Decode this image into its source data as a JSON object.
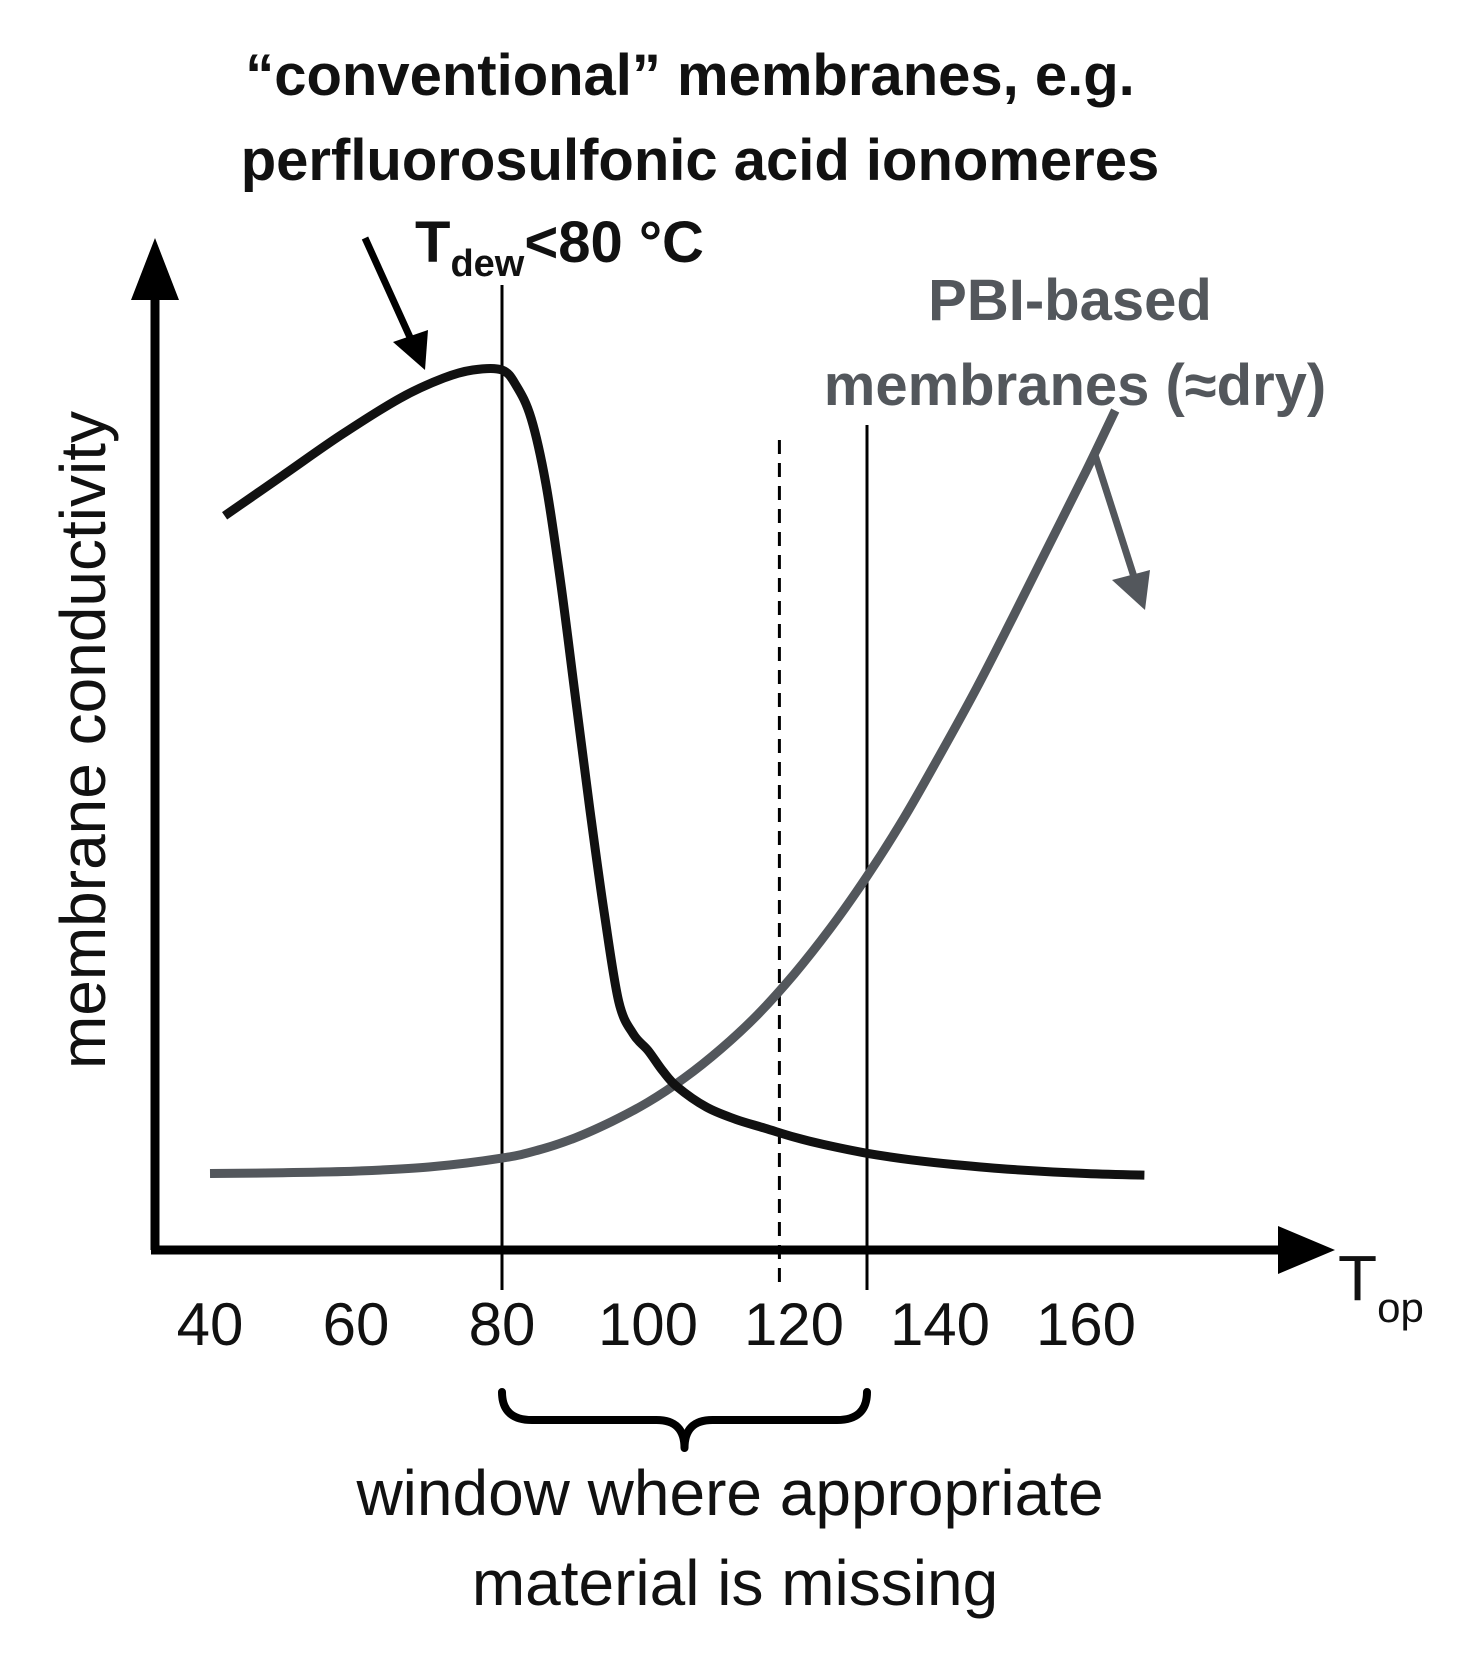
{
  "chart_data": {
    "type": "line",
    "title": "",
    "xlabel": "T",
    "xlabel_sub": "op",
    "ylabel": "membrane conductivity",
    "x_ticks": [
      40,
      60,
      80,
      100,
      120,
      140,
      160
    ],
    "xlim": [
      40,
      168
    ],
    "ylim": [
      0,
      100
    ],
    "y_ticks_shown": false,
    "grid": false,
    "series": [
      {
        "id": "conventional",
        "color": "#111111",
        "x": [
          42,
          50,
          58,
          66,
          72,
          76,
          80,
          82,
          84,
          86,
          88,
          90,
          92,
          94,
          96,
          98,
          100,
          102,
          104,
          108,
          112,
          116,
          120,
          124,
          130,
          136,
          142,
          150,
          160,
          168
        ],
        "y": [
          82,
          87,
          92,
          96.5,
          99,
          100,
          100,
          98,
          94,
          86,
          74,
          60,
          46,
          33,
          22,
          18,
          16,
          13.5,
          11.5,
          9,
          7.5,
          6.4,
          5.3,
          4.4,
          3.3,
          2.5,
          1.9,
          1.3,
          0.8,
          0.6
        ]
      },
      {
        "id": "pbi",
        "color": "#53575c",
        "x": [
          40,
          50,
          60,
          70,
          80,
          85,
          90,
          95,
          100,
          105,
          110,
          115,
          120,
          125,
          130,
          135,
          140,
          145,
          150,
          155,
          160,
          164
        ],
        "y": [
          0.8,
          0.9,
          1.1,
          1.6,
          2.7,
          3.7,
          5.2,
          7.2,
          9.6,
          12.6,
          16.2,
          20.4,
          25.4,
          31.1,
          37.5,
          44.6,
          52.5,
          60.7,
          69.5,
          78.5,
          87.5,
          95
        ]
      }
    ],
    "reference_lines": [
      {
        "x": 80,
        "style": "solid"
      },
      {
        "x": 118,
        "style": "dashed"
      },
      {
        "x": 130,
        "style": "solid"
      }
    ],
    "bracket": {
      "from": 80,
      "to": 130
    },
    "annotations": {
      "conventional_line1": "“conventional” membranes, e.g.",
      "conventional_line2": "perfluorosulfonic acid ionomeres",
      "tdew_main": "T",
      "tdew_sub": "dew",
      "tdew_rest": "<80 °C",
      "pbi_line1": "PBI-based",
      "pbi_line2": "membranes (≈dry)",
      "window_line1": "window where appropriate",
      "window_line2": "material is missing"
    },
    "colors": {
      "axis": "#000000",
      "conventional": "#111111",
      "pbi": "#53575c",
      "pbi_label": "#53575c"
    }
  }
}
